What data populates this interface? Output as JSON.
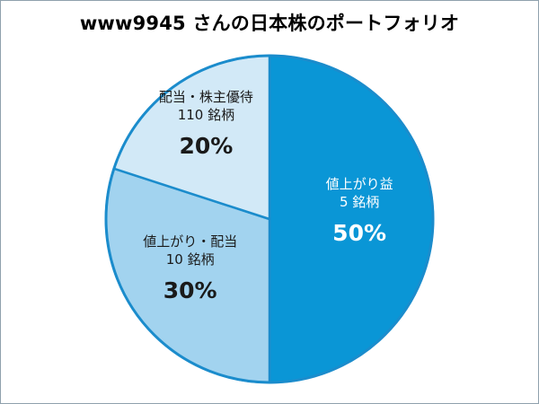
{
  "chart_data": {
    "type": "pie",
    "title": "www9945 さんの日本株のポートフォリオ",
    "slices": [
      {
        "label": "値上がり益",
        "count_label": "5 銘柄",
        "value": 50,
        "value_label": "50%",
        "color": "#0a96d6",
        "text_color": "#ffffff"
      },
      {
        "label": "値上がり・配当",
        "count_label": "10 銘柄",
        "value": 30,
        "value_label": "30%",
        "color": "#a2d3ef",
        "text_color": "#1a1a1a"
      },
      {
        "label": "配当・株主優待",
        "count_label": "110 銘柄",
        "value": 20,
        "value_label": "20%",
        "color": "#d2e9f7",
        "text_color": "#1a1a1a"
      }
    ],
    "legend": "none",
    "start": "12 o'clock, clockwise",
    "border_color": "#1b8ccc"
  }
}
